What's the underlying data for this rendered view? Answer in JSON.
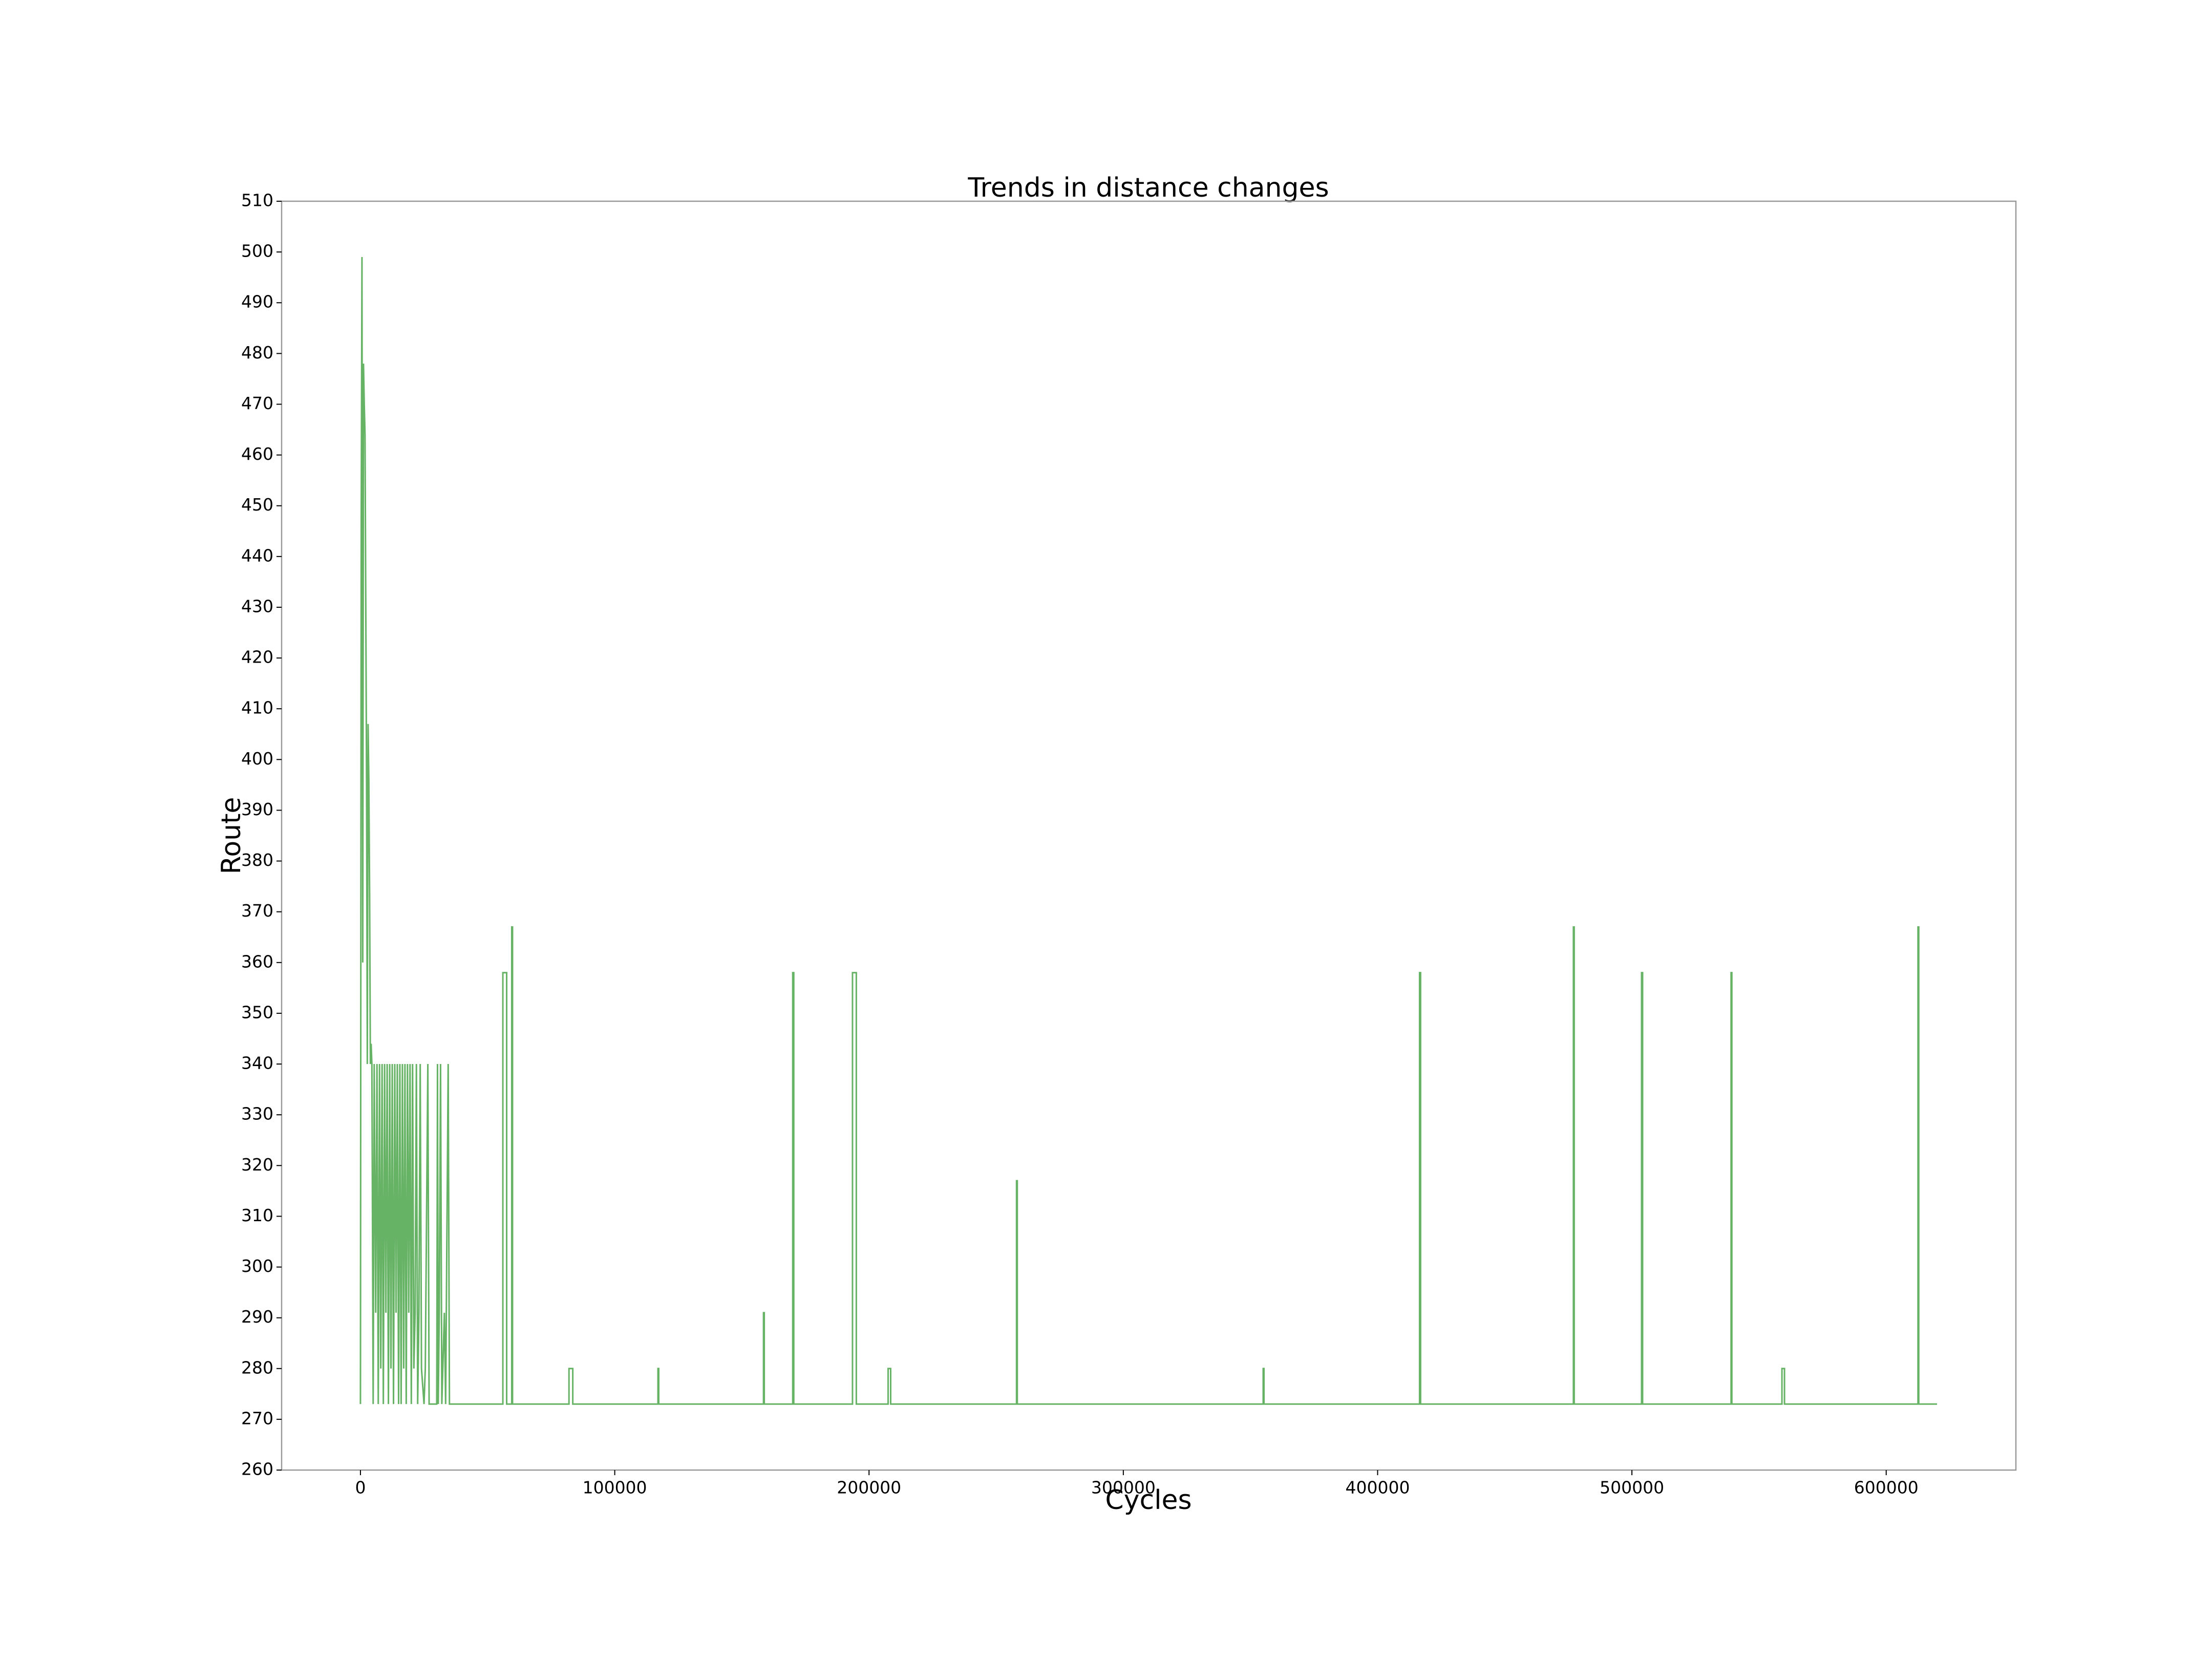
{
  "chart_data": {
    "type": "line",
    "title": "Trends in distance changes",
    "xlabel": "Cycles",
    "ylabel": "Route",
    "xlim": [
      -31000,
      651000
    ],
    "ylim": [
      260,
      510
    ],
    "xticks": [
      0,
      100000,
      200000,
      300000,
      400000,
      500000,
      600000
    ],
    "yticks": [
      260,
      270,
      280,
      290,
      300,
      310,
      320,
      330,
      340,
      350,
      360,
      370,
      380,
      390,
      400,
      410,
      420,
      430,
      440,
      450,
      460,
      470,
      480,
      490,
      500,
      510
    ],
    "grid": false,
    "alpha": 0.6,
    "series": [
      {
        "color": "#008000",
        "x": [
          0,
          300,
          600,
          900,
          1200,
          1500,
          1800,
          2100,
          2400,
          2700,
          3000,
          3300,
          3600,
          3900,
          4200,
          4500,
          5000,
          5400,
          6000,
          6500,
          7000,
          7500,
          8000,
          8500,
          9000,
          9500,
          10000,
          10500,
          11000,
          11500,
          12000,
          12500,
          13000,
          13500,
          14000,
          14500,
          15000,
          15500,
          16000,
          16500,
          17000,
          17500,
          18000,
          18500,
          19000,
          19500,
          20000,
          20500,
          21000,
          21500,
          22000,
          22500,
          23000,
          23500,
          24000,
          25000,
          25500,
          26500,
          27000,
          30000,
          30300,
          30600,
          31000,
          31500,
          32000,
          33000,
          33500,
          34500,
          35000,
          56000,
          56000,
          57500,
          57500,
          59500,
          59500,
          59800,
          59800,
          82000,
          82000,
          83500,
          83500,
          117000,
          117000,
          117300,
          117300,
          158500,
          158500,
          158800,
          158800,
          170000,
          170000,
          170400,
          170400,
          193500,
          193500,
          195000,
          195000,
          207500,
          207500,
          208500,
          208500,
          258000,
          258000,
          258300,
          258300,
          355000,
          355000,
          355300,
          355300,
          416500,
          416500,
          416900,
          416900,
          477000,
          477000,
          477300,
          477300,
          503800,
          503800,
          504200,
          504200,
          539000,
          539000,
          539300,
          539300,
          559000,
          559000,
          560000,
          560000,
          612500,
          612500,
          612800,
          612800,
          620000
        ],
        "values": [
          273,
          447,
          499,
          360,
          478,
          470,
          464,
          430,
          396,
          340,
          407,
          396,
          374,
          340,
          344,
          340,
          273,
          340,
          291,
          340,
          273,
          340,
          280,
          340,
          273,
          340,
          291,
          340,
          273,
          340,
          280,
          340,
          273,
          340,
          291,
          340,
          273,
          340,
          273,
          340,
          280,
          340,
          273,
          340,
          291,
          340,
          273,
          340,
          280,
          291,
          340,
          273,
          291,
          340,
          280,
          273,
          280,
          340,
          273,
          273,
          340,
          273,
          291,
          340,
          273,
          291,
          273,
          340,
          273,
          273,
          358,
          358,
          273,
          273,
          367,
          367,
          273,
          273,
          280,
          280,
          273,
          273,
          280,
          280,
          273,
          273,
          291,
          291,
          273,
          273,
          358,
          358,
          273,
          273,
          358,
          358,
          273,
          273,
          280,
          280,
          273,
          273,
          317,
          317,
          273,
          273,
          280,
          280,
          273,
          273,
          358,
          358,
          273,
          273,
          367,
          367,
          273,
          273,
          358,
          358,
          273,
          273,
          358,
          358,
          273,
          273,
          280,
          280,
          273,
          273,
          367,
          367,
          273,
          273
        ]
      }
    ]
  }
}
